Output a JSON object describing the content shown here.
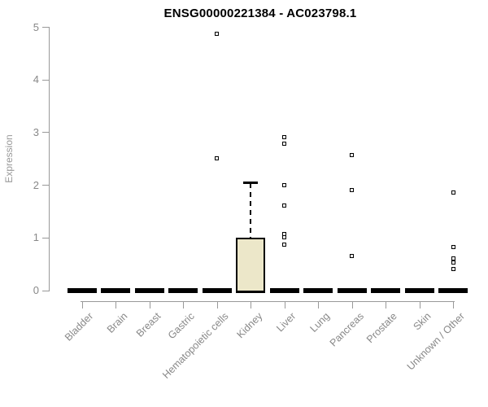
{
  "title": "ENSG00000221384 - AC023798.1",
  "chart_data": {
    "type": "boxplot",
    "title": "ENSG00000221384 - AC023798.1",
    "xlabel": "",
    "ylabel": "Expression",
    "ylim": [
      0,
      5
    ],
    "yticks": [
      0,
      1,
      2,
      3,
      4,
      5
    ],
    "grid": false,
    "legend": false,
    "categories": [
      "Bladder",
      "Brain",
      "Breast",
      "Gastric",
      "Hematopoietic cells",
      "Kidney",
      "Liver",
      "Lung",
      "Pancreas",
      "Prostate",
      "Skin",
      "Unknown / Other"
    ],
    "boxes": [
      {
        "category": "Bladder",
        "q1": 0,
        "median": 0,
        "q3": 0,
        "whisker_low": 0,
        "whisker_high": 0,
        "outliers": []
      },
      {
        "category": "Brain",
        "q1": 0,
        "median": 0,
        "q3": 0,
        "whisker_low": 0,
        "whisker_high": 0,
        "outliers": []
      },
      {
        "category": "Breast",
        "q1": 0,
        "median": 0,
        "q3": 0,
        "whisker_low": 0,
        "whisker_high": 0,
        "outliers": []
      },
      {
        "category": "Gastric",
        "q1": 0,
        "median": 0,
        "q3": 0,
        "whisker_low": 0,
        "whisker_high": 0,
        "outliers": []
      },
      {
        "category": "Hematopoietic cells",
        "q1": 0,
        "median": 0,
        "q3": 0,
        "whisker_low": 0,
        "whisker_high": 0,
        "outliers": [
          4.87,
          2.51
        ]
      },
      {
        "category": "Kidney",
        "q1": 0,
        "median": 0,
        "q3": 1.0,
        "whisker_low": 0,
        "whisker_high": 2.06,
        "outliers": []
      },
      {
        "category": "Liver",
        "q1": 0,
        "median": 0,
        "q3": 0,
        "whisker_low": 0,
        "whisker_high": 0,
        "outliers": [
          2.9,
          2.78,
          2.0,
          1.6,
          1.07,
          1.0,
          0.87
        ]
      },
      {
        "category": "Lung",
        "q1": 0,
        "median": 0,
        "q3": 0,
        "whisker_low": 0,
        "whisker_high": 0,
        "outliers": []
      },
      {
        "category": "Pancreas",
        "q1": 0,
        "median": 0,
        "q3": 0,
        "whisker_low": 0,
        "whisker_high": 0,
        "outliers": [
          2.57,
          1.9,
          0.65
        ]
      },
      {
        "category": "Prostate",
        "q1": 0,
        "median": 0,
        "q3": 0,
        "whisker_low": 0,
        "whisker_high": 0,
        "outliers": []
      },
      {
        "category": "Skin",
        "q1": 0,
        "median": 0,
        "q3": 0,
        "whisker_low": 0,
        "whisker_high": 0,
        "outliers": []
      },
      {
        "category": "Unknown / Other",
        "q1": 0,
        "median": 0,
        "q3": 0,
        "whisker_low": 0,
        "whisker_high": 0,
        "outliers": [
          1.85,
          0.82,
          0.6,
          0.52,
          0.4
        ]
      }
    ],
    "colors": {
      "box_fill": "#ECE7C9",
      "box_border": "#000000",
      "bar": "#000000",
      "point": "#000000",
      "axis": "#999999",
      "tick_label": "#888888",
      "title": "#000000"
    },
    "marker": "open-square"
  }
}
